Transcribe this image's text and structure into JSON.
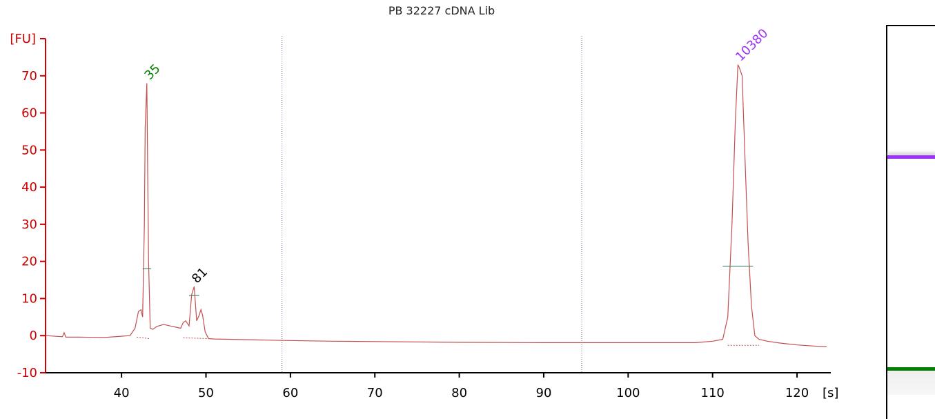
{
  "chart_data": {
    "type": "line",
    "title": "PB 32227 cDNA Lib",
    "xlabel": "[s]",
    "ylabel": "[FU]",
    "xlim": [
      31,
      124
    ],
    "ylim": [
      -10,
      80
    ],
    "x_ticks": [
      40,
      50,
      60,
      70,
      80,
      90,
      100,
      110,
      120
    ],
    "y_ticks": [
      -10,
      0,
      10,
      20,
      30,
      40,
      50,
      60,
      70
    ],
    "vertical_markers": [
      59,
      94.5
    ],
    "grid": false,
    "series": [
      {
        "color": "#c0504d",
        "x": [
          31,
          33,
          33.2,
          33.4,
          35,
          38,
          41,
          41.6,
          42,
          42.3,
          42.5,
          42.7,
          42.8,
          43.0,
          43.2,
          43.4,
          43.7,
          44.2,
          45,
          46,
          47,
          47.3,
          47.6,
          48.0,
          48.3,
          48.6,
          48.9,
          49.2,
          49.4,
          49.6,
          49.9,
          50.3,
          51,
          55,
          59,
          65,
          70,
          80,
          90,
          100,
          108,
          110,
          111.2,
          111.8,
          112.3,
          112.7,
          113.0,
          113.2,
          113.5,
          113.8,
          114.2,
          114.6,
          115.0,
          115.5,
          116.5,
          118,
          120,
          122,
          123.5
        ],
        "values": [
          0,
          -0.3,
          0.8,
          -0.4,
          -0.4,
          -0.5,
          0,
          2,
          6.5,
          7,
          5,
          30,
          56,
          68,
          20,
          2,
          1.7,
          2.5,
          3,
          2.5,
          2,
          3.5,
          4,
          2.6,
          11,
          13.2,
          4,
          5.5,
          7,
          5.5,
          1,
          -0.8,
          -0.9,
          -1.1,
          -1.3,
          -1.5,
          -1.6,
          -1.8,
          -1.9,
          -1.9,
          -1.9,
          -1.5,
          -1,
          5,
          30,
          58,
          73,
          72,
          70,
          50,
          25,
          8,
          0,
          -1,
          -1.5,
          -2,
          -2.5,
          -2.8,
          -3
        ]
      }
    ],
    "baselines": [
      {
        "x": [
          41.8,
          43.3
        ],
        "values": [
          -0.4,
          -0.8
        ]
      },
      {
        "x": [
          47.3,
          50.3
        ],
        "values": [
          -0.6,
          -0.8
        ]
      },
      {
        "x": [
          111.8,
          115.5
        ],
        "values": [
          -2.6,
          -2.6
        ]
      }
    ],
    "peaks": [
      {
        "label": "35",
        "x": 43.0,
        "y": 68,
        "label_color": "#008000",
        "marker_y": 18
      },
      {
        "label": "81",
        "x": 48.6,
        "y": 13.2,
        "label_color": "#000000",
        "marker_y": 10.8
      },
      {
        "label": "10380",
        "x": 113.0,
        "y": 73,
        "label_color": "#9b30ff",
        "marker_y": 18.7
      }
    ]
  },
  "gel": {
    "bands": [
      {
        "name": "upper-marker",
        "color": "#9b30ff"
      },
      {
        "name": "lower-marker",
        "color": "#008000"
      }
    ]
  }
}
